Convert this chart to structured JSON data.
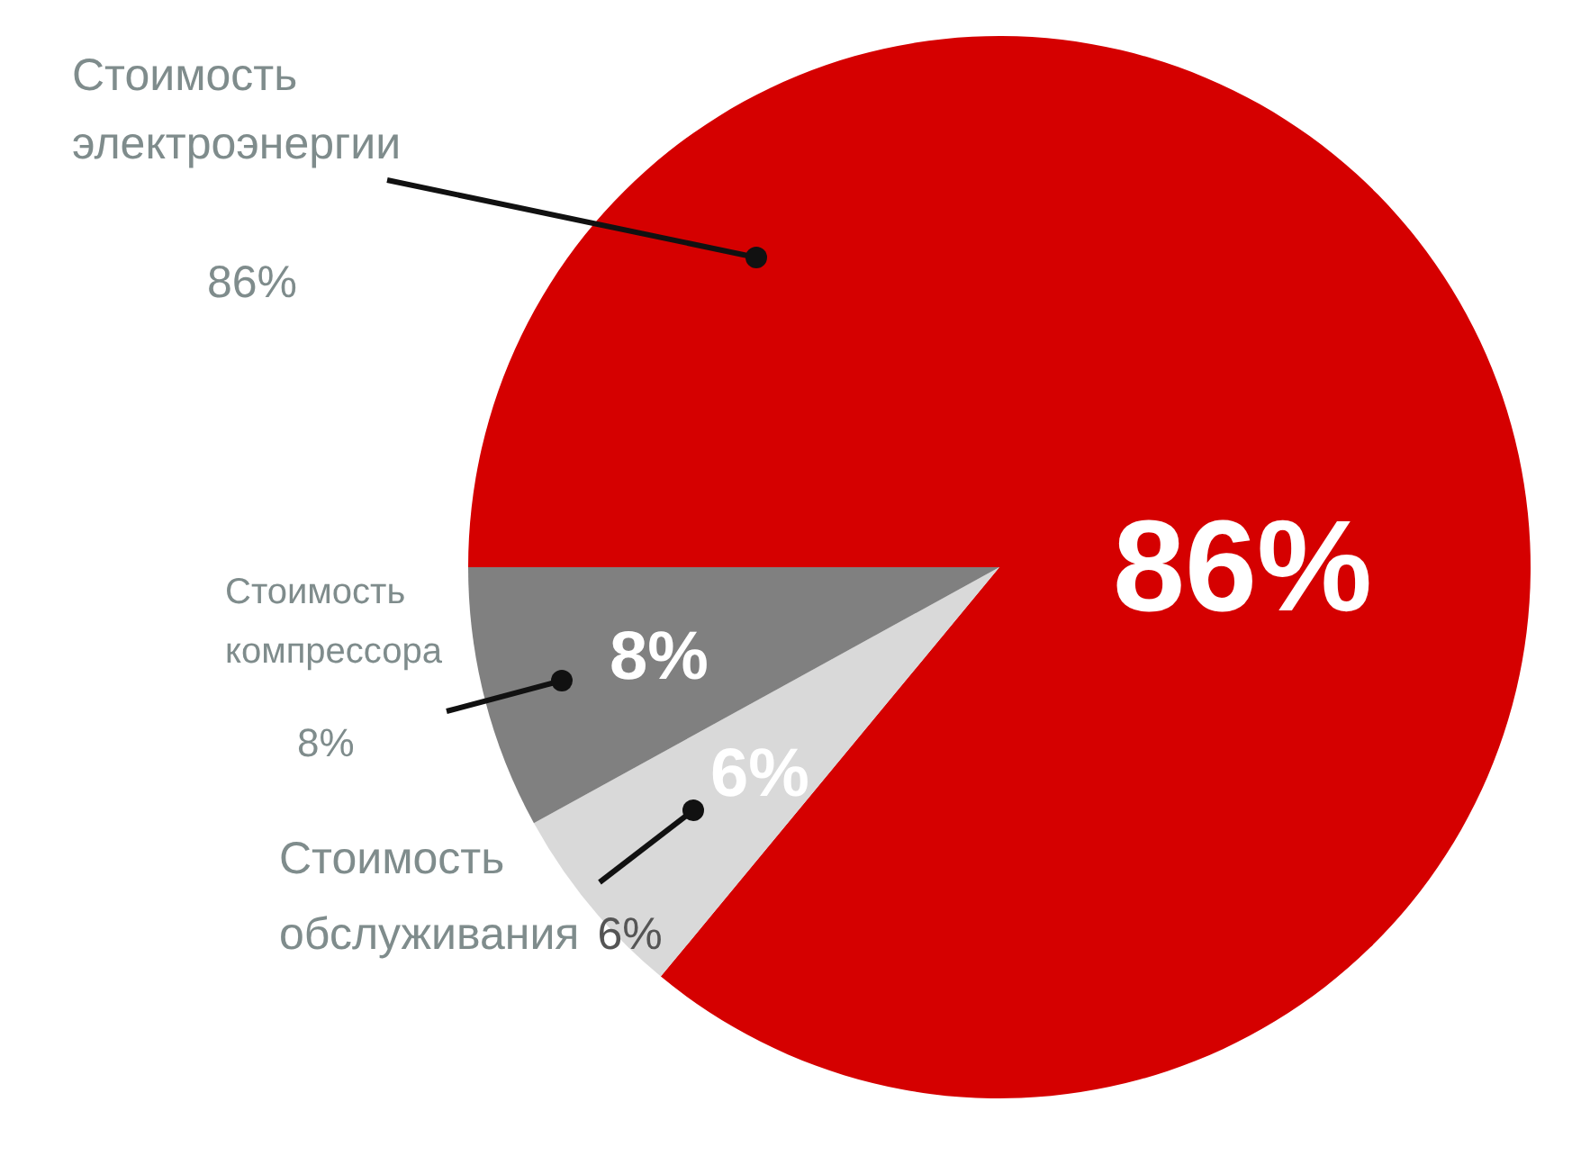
{
  "chart_data": {
    "type": "pie",
    "categories": [
      "Стоимость электроэнергии",
      "Стоимость обслуживания",
      "Стоимость компрессора"
    ],
    "values": [
      86,
      6,
      8
    ],
    "colors": [
      "#d50000",
      "#d9d9d9",
      "#808080"
    ],
    "value_labels": [
      "86%",
      "6%",
      "8%"
    ]
  }
}
